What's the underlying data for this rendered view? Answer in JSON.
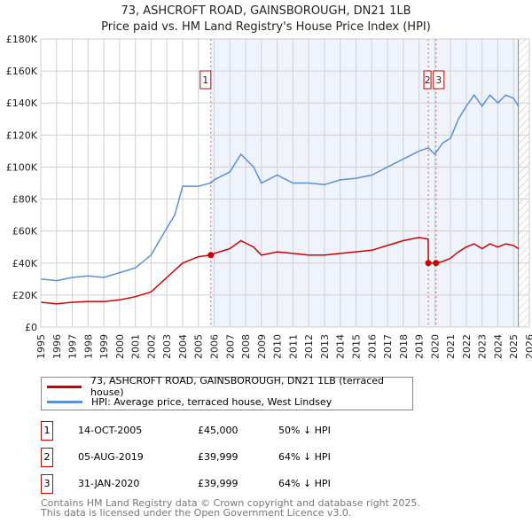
{
  "title": "73, ASHCROFT ROAD, GAINSBOROUGH, DN21 1LB",
  "subtitle": "Price paid vs. HM Land Registry's House Price Index (HPI)",
  "colors": {
    "property": "#cc0000",
    "hpi": "#5b8fd4",
    "shade": "#eef3fc"
  },
  "chart_data": {
    "type": "line",
    "title": "73, ASHCROFT ROAD, GAINSBOROUGH, DN21 1LB",
    "xlim": [
      1995,
      2026
    ],
    "ylim": [
      0,
      180000
    ],
    "x_ticks": [
      "1995",
      "1996",
      "1997",
      "1998",
      "1999",
      "2000",
      "2001",
      "2002",
      "2003",
      "2004",
      "2005",
      "2006",
      "2007",
      "2008",
      "2009",
      "2010",
      "2011",
      "2012",
      "2013",
      "2014",
      "2015",
      "2016",
      "2017",
      "2018",
      "2019",
      "2020",
      "2021",
      "2022",
      "2023",
      "2024",
      "2025",
      "2026"
    ],
    "y_ticks": [
      {
        "v": 0,
        "label": "£0"
      },
      {
        "v": 20000,
        "label": "£20K"
      },
      {
        "v": 40000,
        "label": "£40K"
      },
      {
        "v": 60000,
        "label": "£60K"
      },
      {
        "v": 80000,
        "label": "£80K"
      },
      {
        "v": 100000,
        "label": "£100K"
      },
      {
        "v": 120000,
        "label": "£120K"
      },
      {
        "v": 140000,
        "label": "£140K"
      },
      {
        "v": 160000,
        "label": "£160K"
      },
      {
        "v": 180000,
        "label": "£180K"
      }
    ],
    "grid": true,
    "series": [
      {
        "name": "73, ASHCROFT ROAD, GAINSBOROUGH, DN21 1LB (terraced house)",
        "color": "#cc0000",
        "x": [
          1995,
          1996,
          1997,
          1998,
          1999,
          2000,
          2001,
          2002,
          2003,
          2004,
          2005,
          2005.79,
          2006,
          2007,
          2007.7,
          2008.5,
          2009,
          2010,
          2011,
          2012,
          2013,
          2014,
          2015,
          2016,
          2017,
          2018,
          2019,
          2019.58,
          2019.6,
          2020.08,
          2020.5,
          2021,
          2021.5,
          2022,
          2022.5,
          2023,
          2023.5,
          2024,
          2024.5,
          2025,
          2025.3
        ],
        "y": [
          15500,
          14500,
          15500,
          16000,
          16000,
          17000,
          19000,
          22000,
          31000,
          40000,
          44000,
          45000,
          46000,
          49000,
          54000,
          50000,
          45000,
          47000,
          46000,
          45000,
          45000,
          46000,
          47000,
          48000,
          51000,
          54000,
          56000,
          55000,
          39999,
          39999,
          41000,
          43000,
          47000,
          50000,
          52000,
          49000,
          52000,
          50000,
          52000,
          51000,
          49000
        ]
      },
      {
        "name": "HPI: Average price, terraced house, West Lindsey",
        "color": "#5b8fd4",
        "x": [
          1995,
          1996,
          1997,
          1998,
          1999,
          2000,
          2001,
          2002,
          2003,
          2003.5,
          2004,
          2005,
          2005.79,
          2006,
          2007,
          2007.7,
          2008.5,
          2009,
          2010,
          2011,
          2012,
          2013,
          2014,
          2015,
          2016,
          2017,
          2018,
          2019,
          2019.6,
          2020,
          2020.5,
          2021,
          2021.5,
          2022,
          2022.5,
          2023,
          2023.5,
          2024,
          2024.5,
          2025,
          2025.3
        ],
        "y": [
          30000,
          29000,
          31000,
          32000,
          31000,
          34000,
          37000,
          45000,
          62000,
          70000,
          88000,
          88000,
          90000,
          92000,
          97000,
          108000,
          100000,
          90000,
          95000,
          90000,
          90000,
          89000,
          92000,
          93000,
          95000,
          100000,
          105000,
          110000,
          112000,
          108000,
          115000,
          118000,
          130000,
          138000,
          145000,
          138000,
          145000,
          140000,
          145000,
          143000,
          138000
        ]
      }
    ],
    "sales": [
      {
        "n": "1",
        "x": 2005.79,
        "y": 45000
      },
      {
        "n": "2",
        "x": 2019.59,
        "y": 39999
      },
      {
        "n": "3",
        "x": 2020.08,
        "y": 39999
      }
    ],
    "legend": "below"
  },
  "legend": {
    "property": "73, ASHCROFT ROAD, GAINSBOROUGH, DN21 1LB (terraced house)",
    "hpi": "HPI: Average price, terraced house, West Lindsey"
  },
  "transactions": [
    {
      "n": "1",
      "date": "14-OCT-2005",
      "price": "£45,000",
      "diff": "50% ↓ HPI"
    },
    {
      "n": "2",
      "date": "05-AUG-2019",
      "price": "£39,999",
      "diff": "64% ↓ HPI"
    },
    {
      "n": "3",
      "date": "31-JAN-2020",
      "price": "£39,999",
      "diff": "64% ↓ HPI"
    }
  ],
  "footer": [
    "Contains HM Land Registry data © Crown copyright and database right 2025.",
    "This data is licensed under the Open Government Licence v3.0."
  ]
}
